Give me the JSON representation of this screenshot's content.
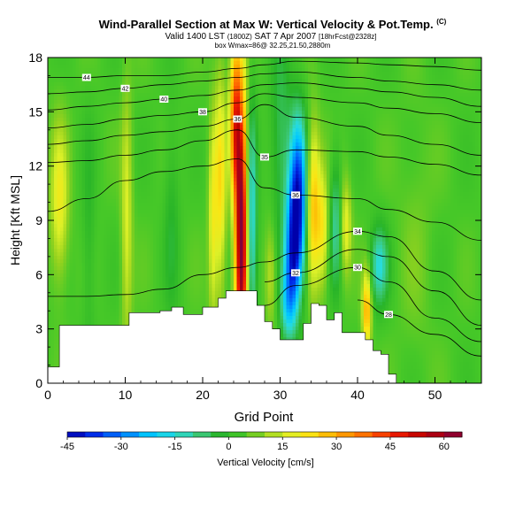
{
  "header": {
    "title": "Wind-Parallel Section at Max W: Vertical Velocity & Pot.Temp.",
    "title_tag": "(C)",
    "subtitle_main": "Valid 1400 LST",
    "subtitle_small1": "(1800Z)",
    "subtitle_date": "SAT 7 Apr 2007",
    "subtitle_small2": "[18hrFcst@2328z]",
    "subsubtitle": "box Wmax=86@ 32.25,21.50,2880m"
  },
  "chart_data": {
    "type": "heatmap",
    "title": "Wind-Parallel Section at Max W: Vertical Velocity & Pot.Temp.",
    "xlabel": "Grid Point",
    "ylabel": "Height [Kft MSL]",
    "xlim": [
      0,
      56
    ],
    "ylim": [
      0,
      18
    ],
    "xticks": [
      "0",
      "10",
      "20",
      "30",
      "40",
      "50"
    ],
    "yticks": [
      "0",
      "3",
      "6",
      "9",
      "12",
      "15",
      "18"
    ],
    "colorbar": {
      "label": "Vertical Velocity [cm/s]",
      "ticks": [
        "-45",
        "-30",
        "-15",
        "0",
        "15",
        "30",
        "45",
        "60"
      ],
      "min": -45,
      "max": 65
    },
    "terrain_top": [
      [
        0,
        0.9
      ],
      [
        1.5,
        3.2
      ],
      [
        5,
        3.2
      ],
      [
        10.5,
        3.9
      ],
      [
        14.5,
        4.0
      ],
      [
        16,
        4.2
      ],
      [
        17.5,
        3.8
      ],
      [
        20,
        4.2
      ],
      [
        22,
        4.7
      ],
      [
        23,
        5.1
      ],
      [
        24.5,
        5.1
      ],
      [
        26,
        5.1
      ],
      [
        27,
        4.3
      ],
      [
        28,
        3.4
      ],
      [
        29,
        3.0
      ],
      [
        30,
        2.4
      ],
      [
        32,
        2.4
      ],
      [
        33,
        3.3
      ],
      [
        34,
        4.4
      ],
      [
        35,
        4.3
      ],
      [
        36,
        3.5
      ],
      [
        37,
        3.9
      ],
      [
        38,
        2.8
      ],
      [
        40.5,
        2.8
      ],
      [
        41,
        2.4
      ],
      [
        42,
        1.8
      ],
      [
        43,
        1.6
      ],
      [
        44,
        0.5
      ],
      [
        45,
        0
      ]
    ],
    "w_cells": [
      {
        "x": 25,
        "z": 8.0,
        "sx": 0.55,
        "sz": 5.5,
        "w": 62
      },
      {
        "x": 24.2,
        "z": 14.5,
        "sx": 0.5,
        "sz": 3.0,
        "w": 35
      },
      {
        "x": 26.3,
        "z": 8.5,
        "sx": 0.5,
        "sz": 4.5,
        "w": -22
      },
      {
        "x": 32.3,
        "z": 10.2,
        "sx": 0.8,
        "sz": 3.0,
        "w": -45
      },
      {
        "x": 31.6,
        "z": 7.0,
        "sx": 0.7,
        "sz": 2.2,
        "w": -30
      },
      {
        "x": 31.0,
        "z": 4.3,
        "sx": 0.7,
        "sz": 1.5,
        "w": -18
      },
      {
        "x": 34.3,
        "z": 9.8,
        "sx": 0.6,
        "sz": 3.0,
        "w": 24
      },
      {
        "x": 35.5,
        "z": 8.5,
        "sx": 0.5,
        "sz": 2.2,
        "w": 15
      },
      {
        "x": 37.2,
        "z": 8.8,
        "sx": 0.5,
        "sz": 2.5,
        "w": -14
      },
      {
        "x": 38.5,
        "z": 8.6,
        "sx": 0.5,
        "sz": 1.8,
        "w": 14
      },
      {
        "x": 41.2,
        "z": 4.0,
        "sx": 0.4,
        "sz": 1.5,
        "w": 26
      },
      {
        "x": 42.8,
        "z": 6.5,
        "sx": 0.8,
        "sz": 1.5,
        "w": -18
      },
      {
        "x": 22.3,
        "z": 11.0,
        "sx": 0.5,
        "sz": 4.5,
        "w": 18
      },
      {
        "x": 21.3,
        "z": 9.0,
        "sx": 0.4,
        "sz": 4.0,
        "w": 14
      },
      {
        "x": 1.5,
        "z": 10.0,
        "sx": 0.8,
        "sz": 3.0,
        "w": 15
      },
      {
        "x": 10.2,
        "z": 9.0,
        "sx": 0.5,
        "sz": 5.0,
        "w": 12
      },
      {
        "x": 5.3,
        "z": 8.0,
        "sx": 0.6,
        "sz": 4.5,
        "w": -5
      },
      {
        "x": 16.0,
        "z": 9.0,
        "sx": 0.7,
        "sz": 4.0,
        "w": -6
      },
      {
        "x": 28.8,
        "z": 6.0,
        "sx": 0.5,
        "sz": 2.0,
        "w": 10
      },
      {
        "x": 30.1,
        "z": 13.5,
        "sx": 0.9,
        "sz": 4.0,
        "w": -10
      },
      {
        "x": 47.5,
        "z": 8.0,
        "sx": 1.5,
        "sz": 5.0,
        "w": 3
      }
    ],
    "isentropes": [
      {
        "label": "44",
        "z": [
          16.9,
          16.9,
          17.0,
          17.0,
          17.2,
          17.4,
          17.6,
          17.8,
          17.7,
          17.6,
          17.5,
          17.3
        ]
      },
      {
        "label": "42",
        "z": [
          16.0,
          16.1,
          16.3,
          16.5,
          16.7,
          16.9,
          17.1,
          17.2,
          16.9,
          16.7,
          16.5,
          16.2
        ]
      },
      {
        "label": "40",
        "z": [
          15.1,
          15.3,
          15.5,
          15.7,
          15.9,
          16.2,
          16.5,
          16.6,
          16.3,
          16.1,
          15.8,
          15.3
        ]
      },
      {
        "label": "38",
        "z": [
          14.1,
          14.3,
          14.6,
          14.8,
          15.0,
          15.5,
          16.0,
          15.8,
          15.5,
          15.2,
          14.9,
          14.4
        ]
      },
      {
        "label": "36",
        "z": [
          13.2,
          13.4,
          13.7,
          13.9,
          14.2,
          14.6,
          15.4,
          14.7,
          14.2,
          13.7,
          13.2,
          12.6
        ]
      },
      {
        "label": "35",
        "z": [
          12.2,
          12.3,
          12.6,
          12.9,
          13.4,
          14.0,
          12.5,
          12.9,
          12.8,
          12.5,
          12.1,
          11.5
        ]
      },
      {
        "label": "36",
        "z": [
          9.5,
          10.2,
          11.2,
          11.7,
          12.0,
          12.4,
          10.8,
          10.4,
          10.2,
          9.6,
          8.9,
          7.9
        ]
      },
      {
        "label": "34",
        "z": [
          4.8,
          4.8,
          4.9,
          5.2,
          6.0,
          6.4,
          6.7,
          7.2,
          8.4,
          8.1,
          6.2,
          4.6
        ]
      },
      {
        "label": "32",
        "z": [
          null,
          null,
          null,
          null,
          null,
          null,
          5.6,
          6.1,
          7.4,
          7.0,
          5.1,
          3.2
        ]
      },
      {
        "label": "30",
        "z": [
          null,
          null,
          null,
          null,
          null,
          null,
          4.3,
          5.4,
          6.4,
          5.6,
          3.6,
          2.3
        ]
      },
      {
        "label": "28",
        "z": [
          null,
          null,
          null,
          null,
          null,
          null,
          null,
          null,
          4.6,
          3.8,
          2.7,
          1.5
        ]
      }
    ],
    "isentrope_x": [
      0,
      5,
      10,
      15,
      20,
      24.5,
      28,
      32,
      40,
      44,
      50,
      56
    ]
  }
}
